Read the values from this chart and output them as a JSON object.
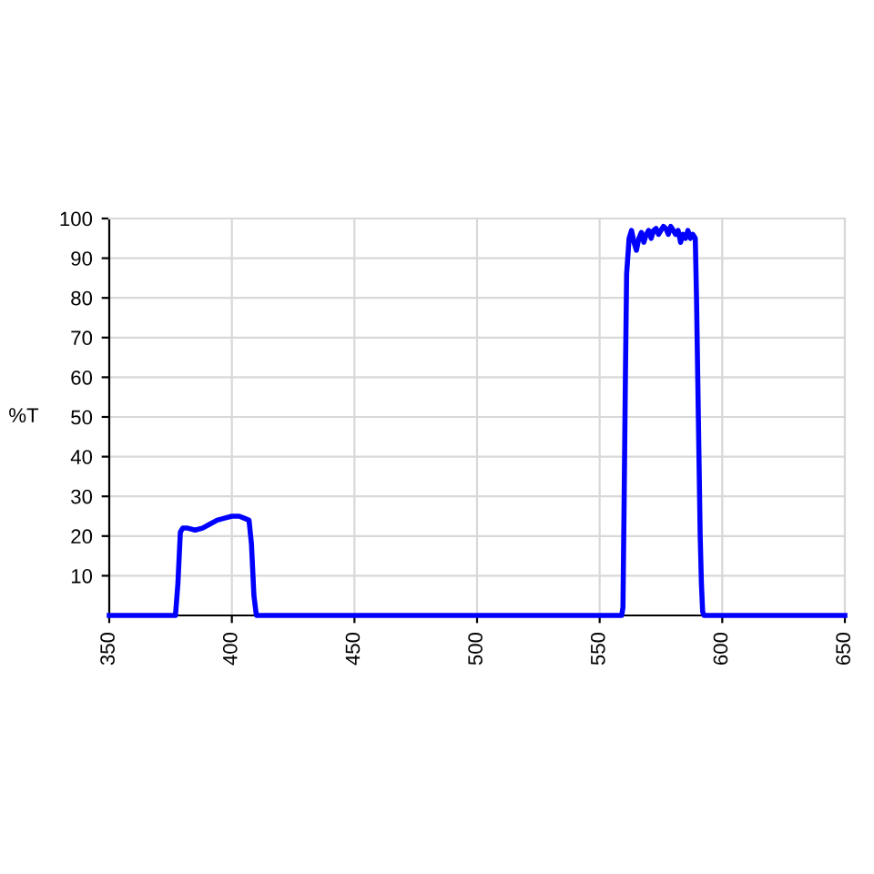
{
  "chart_data": {
    "type": "line",
    "ylabel": "%T",
    "xlim": [
      350,
      650
    ],
    "ylim": [
      0,
      100
    ],
    "xticks": [
      350,
      400,
      450,
      500,
      550,
      600,
      650
    ],
    "yticks": [
      10,
      20,
      30,
      40,
      50,
      60,
      70,
      80,
      90,
      100
    ],
    "grid": true,
    "marker": "none",
    "line_style": "solid",
    "series": [
      {
        "color": "#0000ff",
        "x": [
          350,
          377,
          378,
          379,
          380,
          382,
          385,
          388,
          391,
          394,
          397,
          400,
          403,
          405,
          407,
          408,
          409,
          410,
          411,
          559,
          559.5,
          560,
          560.5,
          561,
          562,
          563,
          564,
          565,
          566,
          567,
          568,
          569,
          570,
          571,
          572,
          573,
          574,
          575,
          576,
          577,
          578,
          579,
          580,
          581,
          582,
          583,
          584,
          585,
          586,
          587,
          588,
          589,
          589.5,
          590,
          590.5,
          591,
          591.5,
          592,
          592.5,
          650
        ],
        "values": [
          0,
          0,
          8,
          21,
          22,
          22,
          21.5,
          22,
          23,
          24,
          24.5,
          25,
          25,
          24.5,
          24,
          18,
          5,
          0,
          0,
          0,
          2,
          30,
          60,
          86,
          95,
          97,
          94,
          92,
          95,
          96.5,
          94,
          96,
          97,
          95,
          97,
          97.5,
          96,
          97,
          98,
          97.5,
          96,
          98,
          97,
          96,
          97,
          94,
          96,
          95,
          97,
          95,
          96,
          95,
          80,
          60,
          40,
          20,
          8,
          1,
          0,
          0
        ]
      }
    ]
  }
}
